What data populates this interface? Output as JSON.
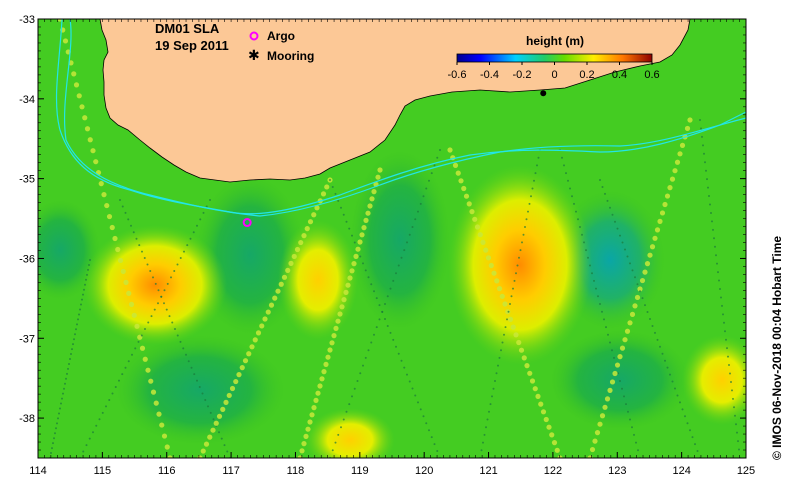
{
  "map": {
    "title_line1": "DM01 SLA",
    "title_line2": "19 Sep 2011",
    "legend": [
      {
        "label": "Argo",
        "color": "#ff00ff",
        "symbol": "circle"
      },
      {
        "label": "Mooring",
        "color": "#000000",
        "symbol": "star"
      }
    ],
    "colorbar": {
      "title": "height (m)",
      "ticks": [
        "-0.6",
        "-0.4",
        "-0.2",
        "0",
        "0.2",
        "0.4",
        "0.6"
      ],
      "range": [
        -0.6,
        0.6
      ]
    },
    "x_axis": {
      "ticks": [
        "114",
        "115",
        "116",
        "117",
        "118",
        "119",
        "120",
        "121",
        "122",
        "123",
        "124",
        "125"
      ],
      "range": [
        114,
        125
      ]
    },
    "y_axis": {
      "ticks": [
        "-33",
        "-34",
        "-35",
        "-36",
        "-37",
        "-38"
      ],
      "range": [
        -38.5,
        -33
      ]
    },
    "copyright": "© IMOS 06-Nov-2018 00:04 Hobart Time",
    "colors": {
      "land": "#fcc896",
      "ocean_base": "#44cc22",
      "contour": "#22e6e6"
    },
    "argo_float": {
      "lon": 117.25,
      "lat": -35.55
    },
    "mooring": {
      "lon": 121.85,
      "lat": -33.93
    }
  }
}
